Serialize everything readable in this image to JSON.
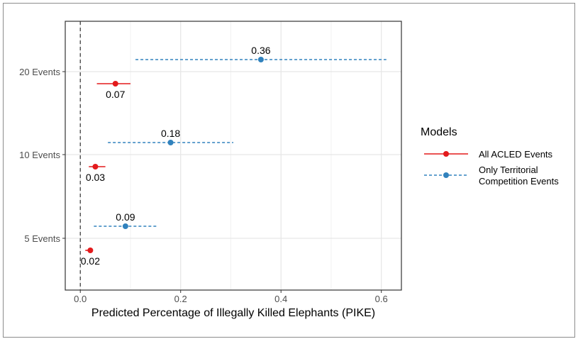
{
  "chart_data": {
    "type": "scatter",
    "xlabel": "Predicted Percentage of Illegally Killed Elephants (PIKE)",
    "ylabel": "",
    "xlim": [
      -0.03,
      0.64
    ],
    "x_ticks": [
      0.0,
      0.2,
      0.4,
      0.6
    ],
    "x_tick_labels": [
      "0.0",
      "0.2",
      "0.4",
      "0.6"
    ],
    "categories": [
      "5 Events",
      "10 Events",
      "20 Events"
    ],
    "grid": true,
    "reference_line": {
      "x": 0,
      "style": "dashed"
    },
    "legend": {
      "title": "Models",
      "placement": "right",
      "entries": [
        {
          "label": "All ACLED Events",
          "color": "#e31a1c",
          "line": "solid"
        },
        {
          "label_lines": [
            "Only Territorial",
            "Competition Events"
          ],
          "color": "#3182bd",
          "line": "dashed"
        }
      ]
    },
    "series": [
      {
        "name": "All ACLED Events",
        "color": "#e31a1c",
        "line": "solid",
        "points": [
          {
            "category": "20 Events",
            "estimate": 0.07,
            "low": 0.033,
            "high": 0.1,
            "label": "0.07"
          },
          {
            "category": "10 Events",
            "estimate": 0.03,
            "low": 0.017,
            "high": 0.05,
            "label": "0.03"
          },
          {
            "category": "5 Events",
            "estimate": 0.02,
            "low": 0.01,
            "high": 0.025,
            "label": "0.02"
          }
        ]
      },
      {
        "name": "Only Territorial Competition Events",
        "color": "#3182bd",
        "line": "dashed",
        "points": [
          {
            "category": "20 Events",
            "estimate": 0.36,
            "low": 0.11,
            "high": 0.61,
            "label": "0.36"
          },
          {
            "category": "10 Events",
            "estimate": 0.18,
            "low": 0.055,
            "high": 0.305,
            "label": "0.18"
          },
          {
            "category": "5 Events",
            "estimate": 0.09,
            "low": 0.027,
            "high": 0.153,
            "label": "0.09"
          }
        ]
      }
    ]
  }
}
